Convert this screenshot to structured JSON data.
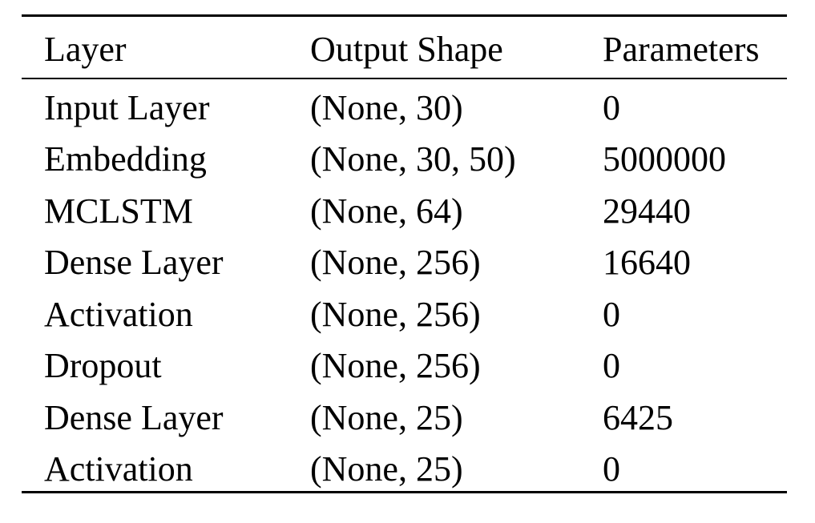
{
  "table": {
    "headers": [
      "Layer",
      "Output Shape",
      "Parameters"
    ],
    "rows": [
      [
        "Input Layer",
        "(None, 30)",
        "0"
      ],
      [
        "Embedding",
        "(None, 30, 50)",
        "5000000"
      ],
      [
        "MCLSTM",
        "(None, 64)",
        "29440"
      ],
      [
        "Dense Layer",
        "(None, 256)",
        "16640"
      ],
      [
        "Activation",
        "(None, 256)",
        "0"
      ],
      [
        "Dropout",
        "(None, 256)",
        "0"
      ],
      [
        "Dense Layer",
        "(None, 25)",
        "6425"
      ],
      [
        "Activation",
        "(None, 25)",
        "0"
      ]
    ]
  }
}
